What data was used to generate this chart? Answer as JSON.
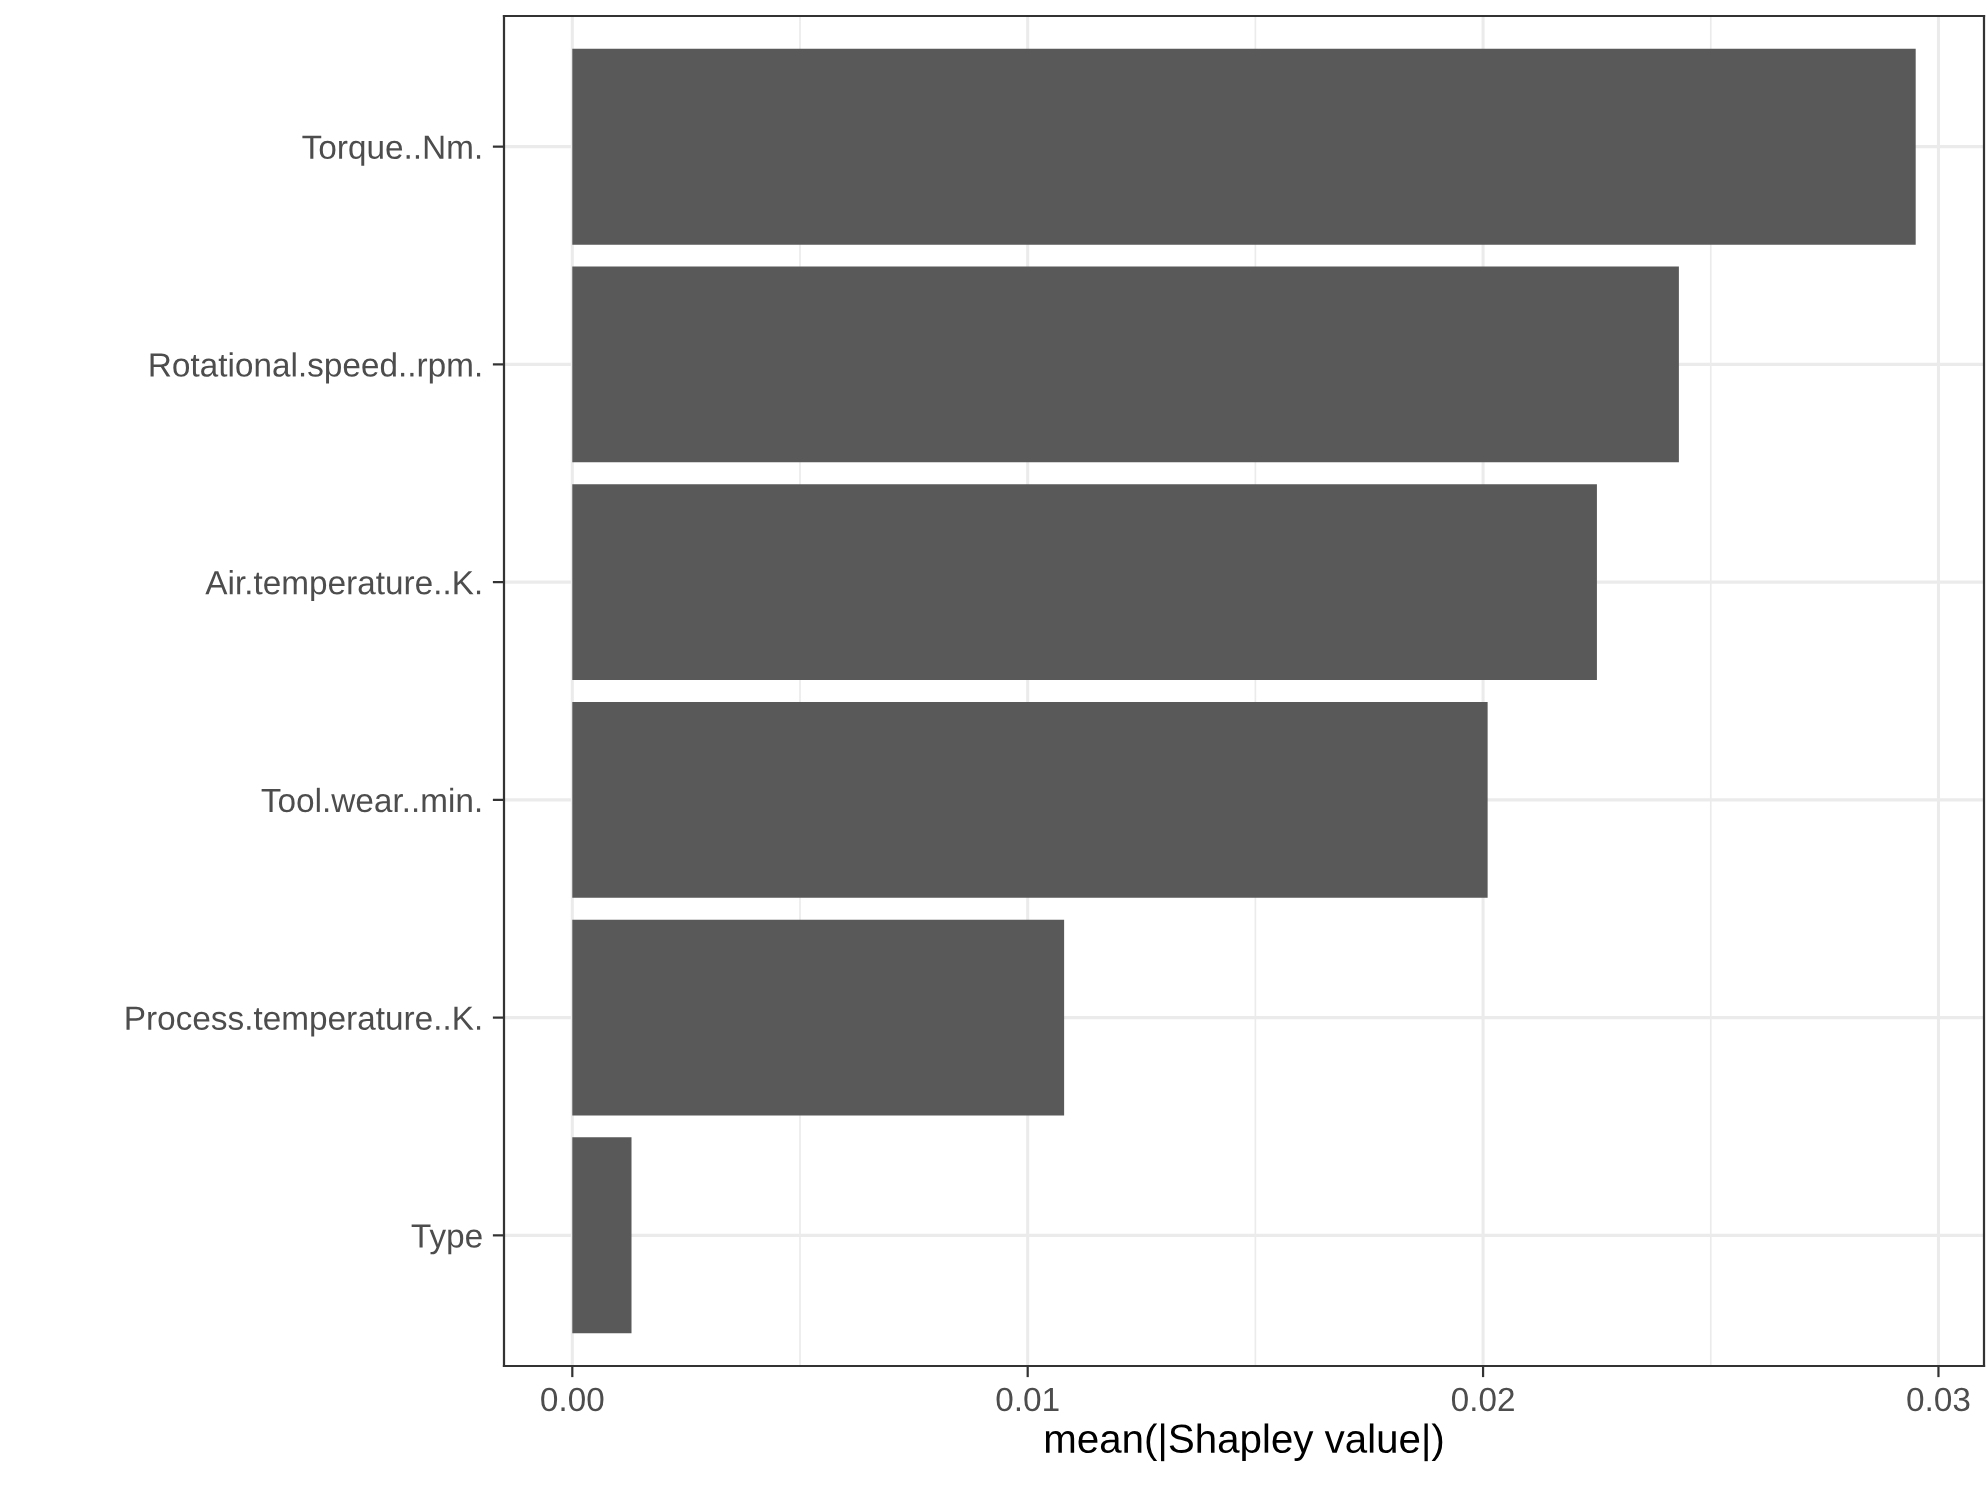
{
  "chart_data": {
    "type": "bar",
    "orientation": "horizontal",
    "xlabel": "mean(|Shapley value|)",
    "categories": [
      "Torque..Nm.",
      "Rotational.speed..rpm.",
      "Air.temperature..K.",
      "Tool.wear..min.",
      "Process.temperature..K.",
      "Type"
    ],
    "values": [
      0.0295,
      0.0243,
      0.0225,
      0.0201,
      0.0108,
      0.0013
    ],
    "color": "#595959",
    "xlim": [
      -0.0015,
      0.031
    ],
    "xticks": [
      {
        "value": 0,
        "label": "0.00"
      },
      {
        "value": 0.01,
        "label": "0.01"
      },
      {
        "value": 0.02,
        "label": "0.02"
      },
      {
        "value": 0.03,
        "label": "0.03"
      }
    ],
    "grid": true
  }
}
